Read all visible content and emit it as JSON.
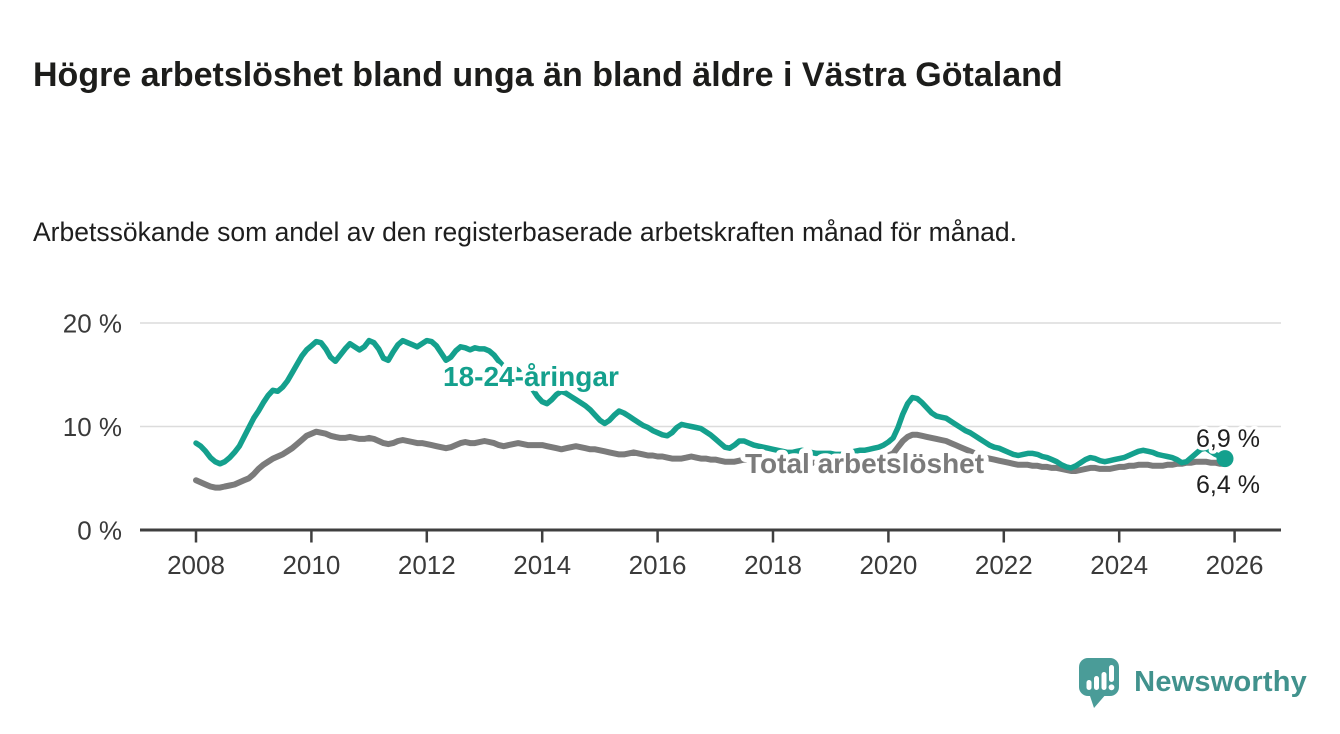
{
  "header": {
    "title": "Högre arbetslöshet bland unga än bland äldre i Västra Götaland",
    "subtitle": "Arbetssökande som andel av den registerbaserade arbetskraften månad för månad."
  },
  "branding": {
    "logo_text": "Newsworthy",
    "logo_icon": "bar-chart-speech-bubble-icon",
    "logo_color": "#4a9c98",
    "logo_text_color": "#41928d"
  },
  "colors": {
    "accent_teal": "#14a08d",
    "line_gray": "#7b7b7b",
    "axis": "#3f3f3f",
    "gridline": "#dcdcdc",
    "tick_text": "#3a3a3a",
    "end_label_text": "#1f1f1f"
  },
  "chart_data": {
    "type": "line",
    "unit": "%",
    "x": {
      "frequency": "monthly",
      "start_year": 2008,
      "start_month": 1,
      "end_year": 2025,
      "end_month": 11
    },
    "x_tick_labels": [
      "2008",
      "2010",
      "2012",
      "2014",
      "2016",
      "2018",
      "2020",
      "2022",
      "2024",
      "2026"
    ],
    "y_ticks": [
      {
        "value": 0,
        "label": "0 %"
      },
      {
        "value": 10,
        "label": "10 %"
      },
      {
        "value": 20,
        "label": "20 %"
      }
    ],
    "ylim": [
      0,
      21.5
    ],
    "grid": "horizontal",
    "legend_position": "inline-labels-on-lines",
    "series": [
      {
        "name": "18-24-åringar",
        "color": "#14a08d",
        "end_label": "6,9 %",
        "end_value": 6.9,
        "end_marker": "dot",
        "values": [
          8.4,
          8.1,
          7.6,
          7.0,
          6.6,
          6.4,
          6.6,
          7.0,
          7.5,
          8.1,
          9.0,
          9.9,
          10.8,
          11.5,
          12.3,
          13.0,
          13.5,
          13.4,
          13.8,
          14.4,
          15.2,
          16.0,
          16.8,
          17.4,
          17.8,
          18.2,
          18.1,
          17.5,
          16.7,
          16.3,
          16.9,
          17.5,
          18.0,
          17.7,
          17.4,
          17.7,
          18.3,
          18.1,
          17.5,
          16.6,
          16.4,
          17.2,
          17.9,
          18.3,
          18.1,
          17.9,
          17.7,
          18.0,
          18.3,
          18.2,
          17.8,
          17.1,
          16.4,
          16.7,
          17.3,
          17.7,
          17.6,
          17.4,
          17.6,
          17.5,
          17.5,
          17.3,
          16.9,
          16.3,
          15.8,
          15.4,
          15.7,
          15.4,
          14.8,
          14.2,
          13.6,
          12.9,
          12.4,
          12.2,
          12.6,
          13.1,
          13.4,
          13.2,
          12.9,
          12.6,
          12.3,
          12.0,
          11.6,
          11.1,
          10.6,
          10.3,
          10.6,
          11.1,
          11.5,
          11.3,
          11.0,
          10.7,
          10.4,
          10.1,
          9.9,
          9.6,
          9.4,
          9.2,
          9.1,
          9.4,
          9.9,
          10.2,
          10.1,
          10.0,
          9.9,
          9.8,
          9.5,
          9.2,
          8.8,
          8.4,
          8.0,
          7.9,
          8.2,
          8.6,
          8.6,
          8.4,
          8.2,
          8.1,
          8.0,
          7.9,
          7.8,
          7.7,
          7.6,
          7.5,
          7.5,
          7.6,
          7.7,
          7.6,
          7.5,
          7.4,
          7.4,
          7.4,
          7.4,
          7.3,
          7.3,
          7.4,
          7.5,
          7.6,
          7.7,
          7.7,
          7.8,
          7.9,
          8.0,
          8.2,
          8.5,
          8.9,
          9.9,
          11.2,
          12.2,
          12.8,
          12.7,
          12.3,
          11.8,
          11.3,
          11.0,
          10.9,
          10.8,
          10.5,
          10.2,
          9.9,
          9.6,
          9.4,
          9.1,
          8.8,
          8.5,
          8.2,
          8.0,
          7.9,
          7.7,
          7.5,
          7.3,
          7.2,
          7.3,
          7.4,
          7.4,
          7.3,
          7.1,
          7.0,
          6.8,
          6.6,
          6.3,
          6.1,
          6.0,
          6.2,
          6.5,
          6.8,
          7.0,
          6.9,
          6.7,
          6.6,
          6.7,
          6.8,
          6.9,
          7.0,
          7.2,
          7.4,
          7.6,
          7.7,
          7.6,
          7.5,
          7.3,
          7.2,
          7.1,
          7.0,
          6.8,
          6.5,
          6.6,
          7.0,
          7.4,
          7.8,
          7.9,
          7.6,
          7.3,
          7.1,
          6.9
        ]
      },
      {
        "name": "Total arbetslöshet",
        "color": "#7b7b7b",
        "end_label": "6,4 %",
        "end_value": 6.4,
        "end_marker": "none",
        "values": [
          4.8,
          4.6,
          4.4,
          4.2,
          4.1,
          4.1,
          4.2,
          4.3,
          4.4,
          4.6,
          4.8,
          5.0,
          5.4,
          5.9,
          6.3,
          6.6,
          6.9,
          7.1,
          7.3,
          7.6,
          7.9,
          8.3,
          8.7,
          9.1,
          9.3,
          9.5,
          9.4,
          9.3,
          9.1,
          9.0,
          8.9,
          8.9,
          9.0,
          8.9,
          8.8,
          8.8,
          8.9,
          8.8,
          8.6,
          8.4,
          8.3,
          8.4,
          8.6,
          8.7,
          8.6,
          8.5,
          8.4,
          8.4,
          8.3,
          8.2,
          8.1,
          8.0,
          7.9,
          8.0,
          8.2,
          8.4,
          8.5,
          8.4,
          8.4,
          8.5,
          8.6,
          8.5,
          8.4,
          8.2,
          8.1,
          8.2,
          8.3,
          8.4,
          8.3,
          8.2,
          8.2,
          8.2,
          8.2,
          8.1,
          8.0,
          7.9,
          7.8,
          7.9,
          8.0,
          8.1,
          8.0,
          7.9,
          7.8,
          7.8,
          7.7,
          7.6,
          7.5,
          7.4,
          7.3,
          7.3,
          7.4,
          7.5,
          7.4,
          7.3,
          7.2,
          7.2,
          7.1,
          7.1,
          7.0,
          6.9,
          6.9,
          6.9,
          7.0,
          7.1,
          7.0,
          6.9,
          6.9,
          6.8,
          6.8,
          6.7,
          6.6,
          6.6,
          6.6,
          6.7,
          6.8,
          6.8,
          6.7,
          6.7,
          6.6,
          6.6,
          6.6,
          6.5,
          6.5,
          6.4,
          6.4,
          6.5,
          6.6,
          6.6,
          6.5,
          6.5,
          6.5,
          6.5,
          6.5,
          6.4,
          6.4,
          6.4,
          6.4,
          6.5,
          6.6,
          6.7,
          6.7,
          6.8,
          6.8,
          6.9,
          7.2,
          7.4,
          8.0,
          8.6,
          9.0,
          9.2,
          9.2,
          9.1,
          9.0,
          8.9,
          8.8,
          8.7,
          8.6,
          8.4,
          8.2,
          8.0,
          7.8,
          7.6,
          7.4,
          7.2,
          7.0,
          6.9,
          6.8,
          6.7,
          6.6,
          6.5,
          6.4,
          6.3,
          6.3,
          6.3,
          6.2,
          6.2,
          6.1,
          6.1,
          6.0,
          6.0,
          5.9,
          5.8,
          5.7,
          5.7,
          5.8,
          5.9,
          6.0,
          6.0,
          5.9,
          5.9,
          5.9,
          6.0,
          6.1,
          6.1,
          6.2,
          6.2,
          6.3,
          6.3,
          6.3,
          6.2,
          6.2,
          6.2,
          6.3,
          6.3,
          6.4,
          6.4,
          6.5,
          6.5,
          6.6,
          6.6,
          6.6,
          6.5,
          6.5,
          6.4,
          6.4
        ]
      }
    ]
  }
}
